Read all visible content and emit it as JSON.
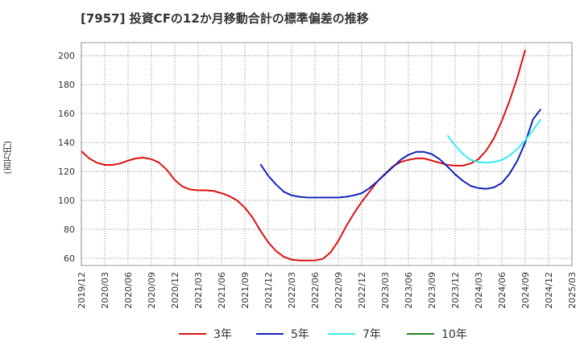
{
  "chart_data": {
    "type": "line",
    "title": "[7957]  投資CFの12か月移動合計の標準偏差の推移",
    "ylabel": "(百万円)",
    "xlabel": "",
    "ylim": [
      55,
      209
    ],
    "yticks": [
      60,
      80,
      100,
      120,
      140,
      160,
      180,
      200
    ],
    "xticks": [
      "2019/12",
      "2020/03",
      "2020/06",
      "2020/09",
      "2020/12",
      "2021/03",
      "2021/06",
      "2021/09",
      "2021/12",
      "2022/03",
      "2022/06",
      "2022/09",
      "2022/12",
      "2023/03",
      "2023/06",
      "2023/09",
      "2023/12",
      "2024/03",
      "2024/06",
      "2024/09",
      "2024/12",
      "2025/03"
    ],
    "grid": true,
    "legend_position": "bottom",
    "series": [
      {
        "name": "3年",
        "color": "#dd1111",
        "start": "2019/12",
        "values": [
          134,
          129,
          126,
          124.5,
          124.5,
          125.5,
          127.5,
          129,
          129.5,
          128.5,
          126,
          121,
          114,
          109.5,
          107.5,
          107,
          107,
          106.5,
          105,
          103,
          100,
          95,
          88,
          79,
          71,
          65,
          61,
          59,
          58.5,
          58.5,
          58.5,
          59.5,
          64,
          72,
          82,
          91,
          99,
          106,
          113,
          118.5,
          123.5,
          126.5,
          128,
          129,
          129,
          127.5,
          126,
          124.5,
          124,
          124,
          125.5,
          128.5,
          134.5,
          143,
          155,
          169,
          185,
          204
        ]
      },
      {
        "name": "5年",
        "color": "#1122bb",
        "start": "2021/11",
        "values": [
          125,
          117,
          111,
          106,
          103.5,
          102.5,
          102,
          102,
          102,
          102,
          102,
          102.5,
          103.5,
          105,
          108.5,
          113,
          118,
          123,
          128,
          131.5,
          133.5,
          133.5,
          132,
          128.5,
          123.5,
          118,
          113.5,
          110,
          108.5,
          108,
          109,
          112,
          118.5,
          127.5,
          140,
          156,
          163
        ]
      },
      {
        "name": "7年",
        "color": "#33eeee",
        "start": "2023/11",
        "values": [
          145,
          138,
          132,
          128,
          126.5,
          126,
          126.5,
          128,
          131,
          135.5,
          141.5,
          148.5,
          156
        ]
      },
      {
        "name": "10年",
        "color": "#228822",
        "start": "2024/12",
        "values": []
      }
    ]
  }
}
